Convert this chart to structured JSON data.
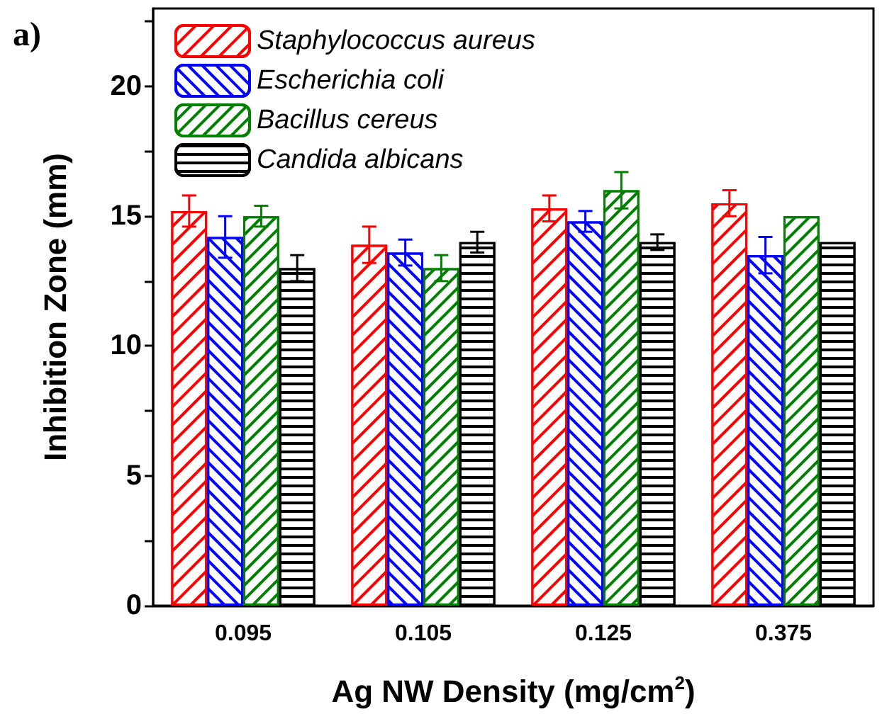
{
  "chart_data": {
    "type": "bar",
    "title": "a)",
    "xlabel": "Ag NW Density (mg/cm$^{2}$)",
    "ylabel": "Inhibition Zone (mm)",
    "categories": [
      "0.095",
      "0.105",
      "0.125",
      "0.375"
    ],
    "series": [
      {
        "name": "Staphylococcus aureus",
        "color": "#ff0000",
        "values": [
          15.2,
          13.9,
          15.3,
          15.5
        ],
        "errors": [
          0.6,
          0.7,
          0.5,
          0.5
        ]
      },
      {
        "name": "Escherichia coli",
        "color": "#0000ff",
        "values": [
          14.2,
          13.6,
          14.8,
          13.5
        ],
        "errors": [
          0.8,
          0.5,
          0.4,
          0.7
        ]
      },
      {
        "name": "Bacillus cereus",
        "color": "#008000",
        "values": [
          15.0,
          13.0,
          16.0,
          15.0
        ],
        "errors": [
          0.4,
          0.5,
          0.7,
          null
        ]
      },
      {
        "name": "Candida albicans",
        "color": "#000000",
        "values": [
          13.0,
          14.0,
          14.0,
          14.0
        ],
        "errors": [
          0.5,
          0.4,
          0.3,
          null
        ]
      }
    ],
    "ylim": [
      0,
      23
    ],
    "yticks": [
      0,
      {
        "value": 2.5,
        "label": null
      },
      5,
      {
        "value": 7.5,
        "label": null
      },
      10,
      {
        "value": 12.5,
        "label": null
      },
      15,
      {
        "value": 17.5,
        "label": null
      },
      20,
      {
        "value": 22.5,
        "label": null
      }
    ],
    "grid": false,
    "legend": "top left"
  }
}
